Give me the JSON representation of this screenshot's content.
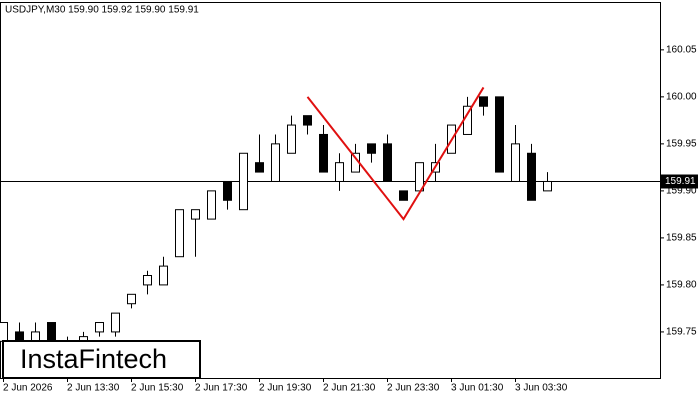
{
  "chart_data": {
    "type": "candlestick",
    "title": "USDJPY,M30  159.90 159.92 159.90 159.91",
    "logo": "InstaFintech",
    "categories": [
      "2 Jun 2026",
      null,
      null,
      null,
      "2 Jun 13:30",
      null,
      null,
      null,
      "2 Jun 15:30",
      null,
      null,
      null,
      "2 Jun 17:30",
      null,
      null,
      null,
      "2 Jun 19:30",
      null,
      null,
      null,
      "2 Jun 21:30",
      null,
      null,
      null,
      "2 Jun 23:30",
      null,
      null,
      null,
      "3 Jun 01:30",
      null,
      null,
      null,
      "3 Jun 03:30",
      null,
      null
    ],
    "open": [
      159.74,
      159.75,
      159.74,
      159.76,
      159.73,
      159.74,
      159.75,
      159.75,
      159.78,
      159.8,
      159.8,
      159.83,
      159.87,
      159.87,
      159.91,
      159.88,
      159.93,
      159.91,
      159.94,
      159.98,
      159.96,
      159.91,
      159.92,
      159.95,
      159.95,
      159.9,
      159.9,
      159.92,
      159.94,
      159.96,
      160.0,
      160.0,
      159.91,
      159.94,
      159.9
    ],
    "high": [
      159.76,
      159.76,
      159.76,
      159.76,
      159.745,
      159.75,
      159.76,
      159.77,
      159.79,
      159.815,
      159.83,
      159.88,
      159.88,
      159.9,
      159.91,
      159.94,
      159.96,
      159.96,
      159.98,
      159.98,
      159.97,
      159.94,
      159.95,
      159.95,
      159.96,
      159.9,
      159.93,
      159.95,
      159.97,
      160.0,
      160.0,
      160.0,
      159.97,
      159.95,
      159.92
    ],
    "low": [
      159.73,
      159.73,
      159.73,
      159.73,
      159.725,
      159.735,
      159.745,
      159.745,
      159.775,
      159.79,
      159.8,
      159.83,
      159.83,
      159.87,
      159.88,
      159.88,
      159.92,
      159.91,
      159.94,
      159.96,
      159.92,
      159.9,
      159.92,
      159.93,
      159.91,
      159.89,
      159.9,
      159.91,
      159.94,
      159.96,
      159.98,
      159.92,
      159.91,
      159.89,
      159.9
    ],
    "close": [
      159.76,
      159.74,
      159.75,
      159.74,
      159.74,
      159.745,
      159.76,
      159.77,
      159.79,
      159.81,
      159.82,
      159.88,
      159.88,
      159.9,
      159.89,
      159.94,
      159.92,
      159.95,
      159.97,
      159.97,
      159.92,
      159.93,
      159.94,
      159.94,
      159.91,
      159.89,
      159.93,
      159.93,
      159.97,
      159.99,
      159.99,
      159.92,
      159.95,
      159.89,
      159.91
    ],
    "up_color": "#ffffff",
    "down_color": "#000000",
    "ylim": [
      159.701,
      160.103
    ],
    "yticks": [
      159.75,
      {
        "value": 159.8,
        "label": "159.80"
      },
      159.85,
      {
        "value": 159.9,
        "label": "159.90"
      },
      159.95,
      {
        "value": 160.0,
        "label": "160.00"
      },
      160.05
    ],
    "last_price": 159.91,
    "pattern": {
      "color": "#e01010",
      "index": [
        19,
        25,
        30
      ],
      "prices": [
        160.0,
        159.87,
        160.01
      ]
    }
  }
}
